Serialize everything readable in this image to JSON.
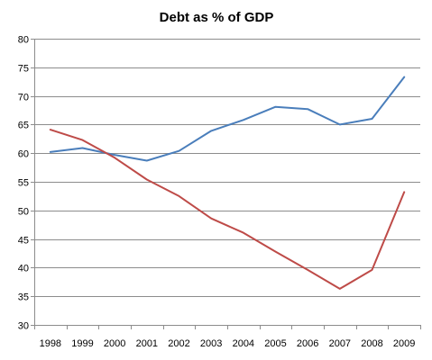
{
  "chart_data": {
    "type": "line",
    "title": "Debt as % of GDP",
    "xlabel": "",
    "ylabel": "",
    "ylim": [
      30,
      80
    ],
    "yticks": [
      30,
      35,
      40,
      45,
      50,
      55,
      60,
      65,
      70,
      75,
      80
    ],
    "grid": true,
    "legend": "none",
    "categories": [
      "1998",
      "1999",
      "2000",
      "2001",
      "2002",
      "2003",
      "2004",
      "2005",
      "2006",
      "2007",
      "2008",
      "2009"
    ],
    "series": [
      {
        "color": "#4a7ebb",
        "values": [
          60.2,
          60.9,
          59.7,
          58.7,
          60.4,
          63.9,
          65.8,
          68.1,
          67.7,
          65.0,
          66.0,
          73.3
        ]
      },
      {
        "color": "#be4b48",
        "values": [
          64.1,
          62.3,
          59.2,
          55.4,
          52.5,
          48.6,
          46.1,
          42.8,
          39.6,
          36.3,
          39.6,
          53.2
        ]
      }
    ]
  }
}
